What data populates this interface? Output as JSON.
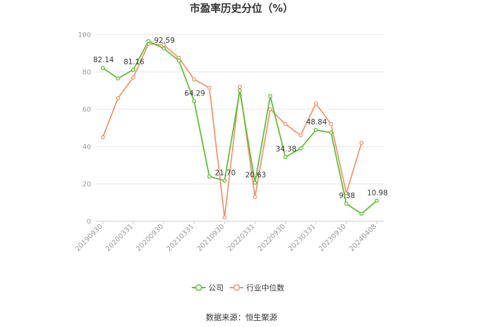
{
  "chart_data": {
    "type": "line",
    "title": "市盈率历史分位（%）",
    "source": "数据来源：恒生聚源",
    "x": [
      "20190930",
      "20191231",
      "20200331",
      "20200630",
      "20200930",
      "20201231",
      "20210331",
      "20210630",
      "20210930",
      "20211231",
      "20220331",
      "20220630",
      "20220930",
      "20221231",
      "20230331",
      "20230630",
      "20230930",
      "20231231",
      "20240408"
    ],
    "x_tick_labels": [
      "20190930",
      "20200331",
      "20200930",
      "20210331",
      "20210930",
      "20220331",
      "20220930",
      "20230331",
      "20230930",
      "20240408"
    ],
    "ylim": [
      0,
      100
    ],
    "y_ticks": [
      "0",
      "20",
      "40",
      "60",
      "80",
      "100"
    ],
    "grid": true,
    "legend_position": "bottom",
    "series": [
      {
        "name": "公司",
        "color": "#5cbf32",
        "values": [
          82.14,
          76.5,
          81.16,
          96.5,
          92.59,
          86.0,
          64.29,
          24.0,
          21.7,
          70.0,
          20.63,
          67.0,
          34.38,
          39.0,
          48.84,
          47.5,
          9.38,
          4.0,
          10.98
        ],
        "labels": [
          "82.14",
          "",
          "81.16",
          "",
          "92.59",
          "",
          "64.29",
          "",
          "21.70",
          "",
          "20.63",
          "",
          "34.38",
          "",
          "48.84",
          "",
          "9.38",
          "",
          "10.98"
        ]
      },
      {
        "name": "行业中位数",
        "color": "#f0956c",
        "values": [
          45.0,
          66.0,
          77.0,
          95.0,
          94.5,
          87.5,
          76.0,
          71.5,
          2.0,
          72.0,
          13.0,
          60.0,
          52.0,
          46.0,
          63.0,
          52.0,
          15.0,
          42.0,
          null
        ]
      }
    ]
  }
}
